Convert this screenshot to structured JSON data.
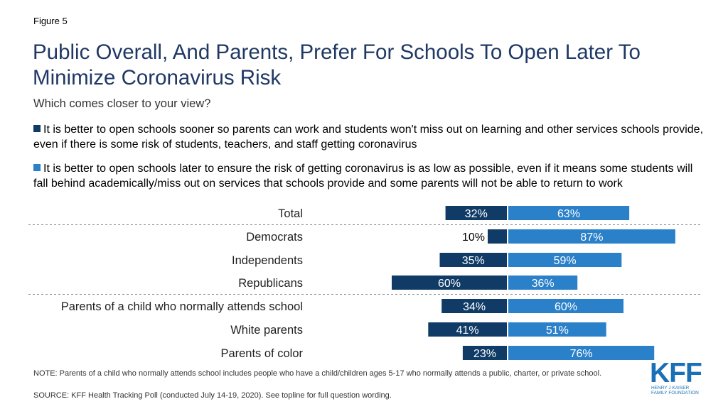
{
  "figure_label": "Figure 5",
  "title": "Public Overall, And Parents, Prefer For Schools To Open Later To Minimize Coronavirus Risk",
  "subtitle": "Which comes closer to your view?",
  "colors": {
    "sooner": "#0f3b66",
    "later": "#2a80c9",
    "title": "#1f3864"
  },
  "chart_data": {
    "type": "bar",
    "orientation": "horizontal-diverging",
    "categories": [
      "Total",
      "Democrats",
      "Independents",
      "Republicans",
      "Parents of a child who normally attends school",
      "White parents",
      "Parents of color"
    ],
    "series": [
      {
        "name": "It is better to open schools sooner so parents can work and students won't miss out on learning and other services schools provide, even if there is some risk of students, teachers, and staff getting coronavirus",
        "values": [
          32,
          10,
          35,
          60,
          34,
          41,
          23
        ],
        "labels": [
          "32%",
          "10%",
          "35%",
          "60%",
          "34%",
          "41%",
          "23%"
        ]
      },
      {
        "name": "It is better to open schools later to ensure the risk of getting coronavirus is as low as possible, even if it means some students will fall behind academically/miss out on services that schools provide and some parents will not be able to return to work",
        "values": [
          63,
          87,
          59,
          36,
          60,
          51,
          76
        ],
        "labels": [
          "63%",
          "87%",
          "59%",
          "36%",
          "60%",
          "51%",
          "76%"
        ]
      }
    ],
    "separators_after": [
      "Total",
      "Republicans"
    ]
  },
  "notes": {
    "note": "NOTE: Parents of a child who normally attends school includes people who have a child/children ages 5-17 who normally attends a public, charter, or private school.",
    "source": "SOURCE: KFF Health Tracking Poll (conducted July 14-19, 2020). See topline for full question wording."
  },
  "logo": {
    "mark": "KFF",
    "line1": "HENRY J KAISER",
    "line2": "FAMILY FOUNDATION"
  }
}
